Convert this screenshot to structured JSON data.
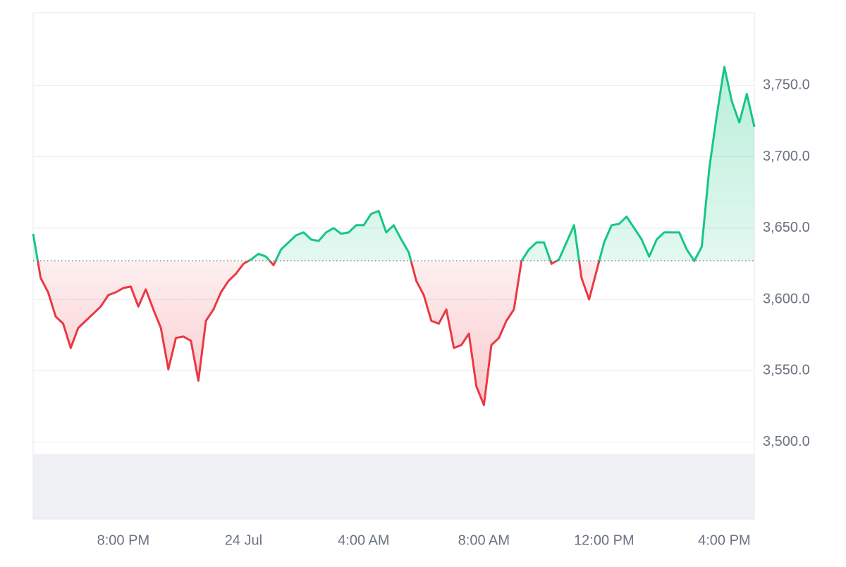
{
  "chart_data": {
    "type": "line",
    "values": [
      3646,
      3615,
      3605,
      3588,
      3583,
      3566,
      3580,
      3585,
      3590,
      3595,
      3603,
      3605,
      3608,
      3609,
      3595,
      3607,
      3593,
      3580,
      3551,
      3573,
      3574,
      3571,
      3543,
      3585,
      3593,
      3605,
      3613,
      3618,
      3625,
      3628,
      3632,
      3630,
      3624,
      3635,
      3640,
      3645,
      3647,
      3642,
      3641,
      3647,
      3650,
      3646,
      3647,
      3652,
      3652,
      3660,
      3662,
      3647,
      3652,
      3642,
      3633,
      3613,
      3603,
      3585,
      3583,
      3593,
      3566,
      3568,
      3576,
      3539,
      3526,
      3568,
      3573,
      3585,
      3593,
      3627,
      3635,
      3640,
      3640,
      3625,
      3628,
      3640,
      3652,
      3615,
      3600,
      3620,
      3640,
      3652,
      3653,
      3658,
      3650,
      3642,
      3630,
      3642,
      3647,
      3647,
      3647,
      3635,
      3627,
      3637,
      3692,
      3729,
      3763,
      3739,
      3724,
      3744,
      3721
    ],
    "baseline": 3627,
    "color_above": "#16c784",
    "color_below": "#ea3943",
    "xlim": [
      0,
      96
    ],
    "xticks": [
      {
        "value": 12,
        "label": "8:00 PM"
      },
      {
        "value": 28,
        "label": "24 Jul"
      },
      {
        "value": 44,
        "label": "4:00 AM"
      },
      {
        "value": 60,
        "label": "8:00 AM"
      },
      {
        "value": 76,
        "label": "12:00 PM"
      },
      {
        "value": 92,
        "label": "4:00 PM"
      }
    ],
    "ylim": [
      3446,
      3801
    ],
    "yticks": [
      {
        "value": 3500,
        "label": "3,500.0"
      },
      {
        "value": 3550,
        "label": "3,550.0"
      },
      {
        "value": 3600,
        "label": "3,600.0"
      },
      {
        "value": 3650,
        "label": "3,650.0"
      },
      {
        "value": 3700,
        "label": "3,700.0"
      },
      {
        "value": 3750,
        "label": "3,750.0"
      }
    ],
    "grid": true
  }
}
